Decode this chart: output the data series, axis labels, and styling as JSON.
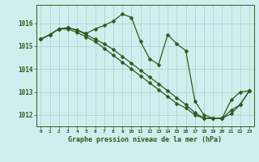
{
  "title": "Graphe pression niveau de la mer (hPa)",
  "background_color": "#d1eeee",
  "grid_color": "#b0d8d8",
  "line_color": "#2d5a1b",
  "marker_color": "#2d5a1b",
  "ylim": [
    1011.5,
    1016.8
  ],
  "yticks": [
    1012,
    1013,
    1014,
    1015,
    1016
  ],
  "xlim": [
    -0.5,
    23.5
  ],
  "series1_x": [
    0,
    1,
    2,
    3,
    4,
    5,
    6,
    7,
    8,
    9,
    10,
    11,
    12,
    13,
    14,
    15,
    16,
    17,
    18,
    19,
    20,
    21,
    22,
    23
  ],
  "series1_y": [
    1015.3,
    1015.5,
    1015.75,
    1015.8,
    1015.7,
    1015.55,
    1015.75,
    1015.9,
    1016.1,
    1016.4,
    1016.25,
    1015.2,
    1014.45,
    1014.2,
    1015.5,
    1015.1,
    1014.8,
    1012.6,
    1012.0,
    1011.85,
    1011.85,
    1012.65,
    1013.0,
    1013.05
  ],
  "series2_x": [
    0,
    1,
    2,
    3,
    4,
    5,
    6,
    7,
    8,
    9,
    10,
    11,
    12,
    13,
    14,
    15,
    16,
    17,
    18,
    19,
    20,
    21,
    22,
    23
  ],
  "series2_y": [
    1015.3,
    1015.5,
    1015.75,
    1015.75,
    1015.6,
    1015.4,
    1015.2,
    1014.9,
    1014.6,
    1014.3,
    1014.0,
    1013.7,
    1013.4,
    1013.1,
    1012.8,
    1012.5,
    1012.3,
    1012.0,
    1011.85,
    1011.85,
    1011.85,
    1012.2,
    1012.45,
    1013.05
  ],
  "series3_x": [
    0,
    1,
    2,
    3,
    4,
    5,
    6,
    7,
    8,
    9,
    10,
    11,
    12,
    13,
    14,
    15,
    16,
    17,
    18,
    19,
    20,
    21,
    22,
    23
  ],
  "series3_y": [
    1015.3,
    1015.5,
    1015.75,
    1015.8,
    1015.7,
    1015.5,
    1015.3,
    1015.1,
    1014.85,
    1014.55,
    1014.25,
    1013.95,
    1013.65,
    1013.35,
    1013.05,
    1012.75,
    1012.45,
    1012.1,
    1011.85,
    1011.85,
    1011.85,
    1012.05,
    1012.45,
    1013.05
  ],
  "x_labels": [
    "0",
    "1",
    "2",
    "3",
    "4",
    "5",
    "6",
    "7",
    "8",
    "9",
    "10",
    "11",
    "12",
    "13",
    "14",
    "15",
    "16",
    "17",
    "18",
    "19",
    "20",
    "21",
    "22",
    "23"
  ]
}
